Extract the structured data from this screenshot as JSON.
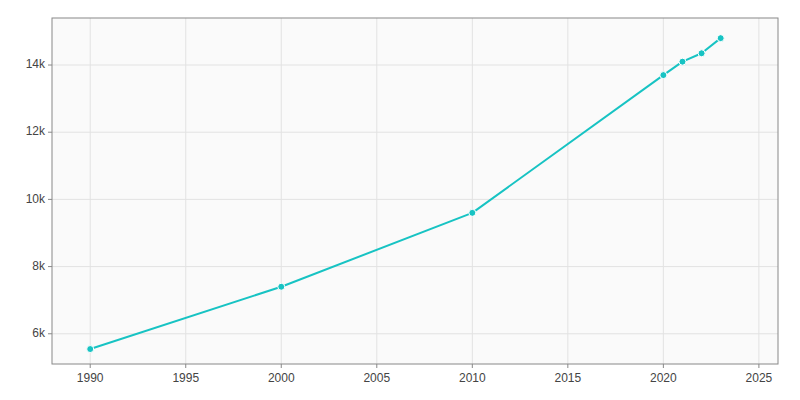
{
  "chart_data": {
    "type": "line",
    "x": [
      1990,
      2000,
      2010,
      2020,
      2021,
      2022,
      2023
    ],
    "values": [
      5545,
      7400,
      9600,
      13700,
      14100,
      14350,
      14800
    ],
    "color": "#17c3c3",
    "marker": "circle",
    "xlim": [
      1988,
      2026
    ],
    "ylim": [
      5100,
      15400
    ],
    "xticks": [
      1990,
      1995,
      2000,
      2005,
      2010,
      2015,
      2020,
      2025
    ],
    "yticks": [
      {
        "value": 6000,
        "label": "6k"
      },
      {
        "value": 8000,
        "label": "8k"
      },
      {
        "value": 10000,
        "label": "10k"
      },
      {
        "value": 12000,
        "label": "12k"
      },
      {
        "value": 14000,
        "label": "14k"
      }
    ],
    "grid": true
  }
}
